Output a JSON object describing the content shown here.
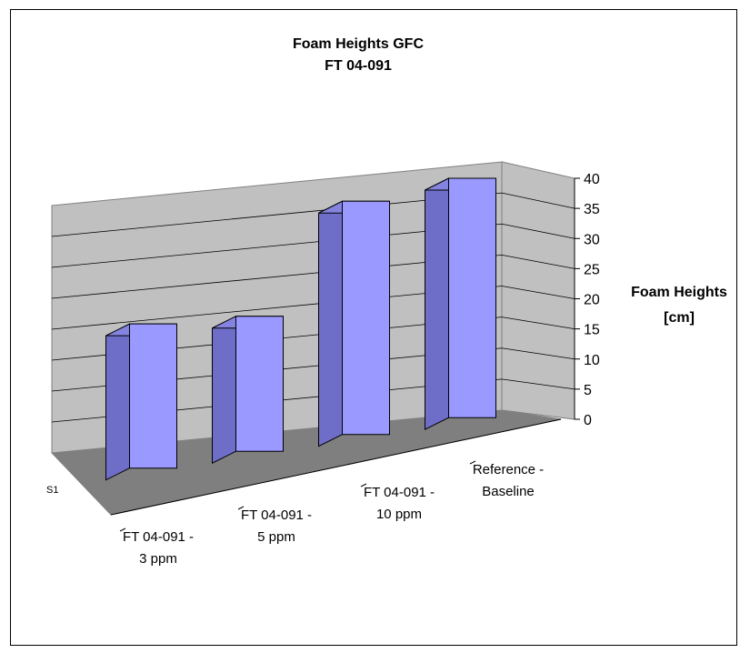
{
  "chart_data": {
    "type": "bar",
    "style": "3d-column",
    "title": [
      "Foam Heights GFC",
      "FT 04-091"
    ],
    "xlabel": "",
    "ylabel": [
      "Foam Heights",
      "[cm]"
    ],
    "ylim": [
      0,
      40
    ],
    "yticks": [
      "0",
      "5",
      "10",
      "15",
      "20",
      "25",
      "30",
      "35",
      "40"
    ],
    "series_label": "S1",
    "categories": [
      [
        "FT 04-091 -",
        "3 ppm"
      ],
      [
        "FT 04-091 -",
        "5 ppm"
      ],
      [
        "FT 04-091 -",
        "10 ppm"
      ],
      [
        "Reference -",
        "Baseline"
      ]
    ],
    "series": [
      {
        "values": [
          23.5,
          22,
          38,
          39
        ]
      }
    ],
    "grid": true,
    "colors": {
      "bar_front": "#9999ff",
      "bar_side": "#6e6ec8",
      "bar_top": "#8484e0",
      "back_wall": "#c0c0c0",
      "side_wall": "#c0c0c0",
      "floor": "#7f7f7f",
      "gridline": "#000000"
    }
  }
}
